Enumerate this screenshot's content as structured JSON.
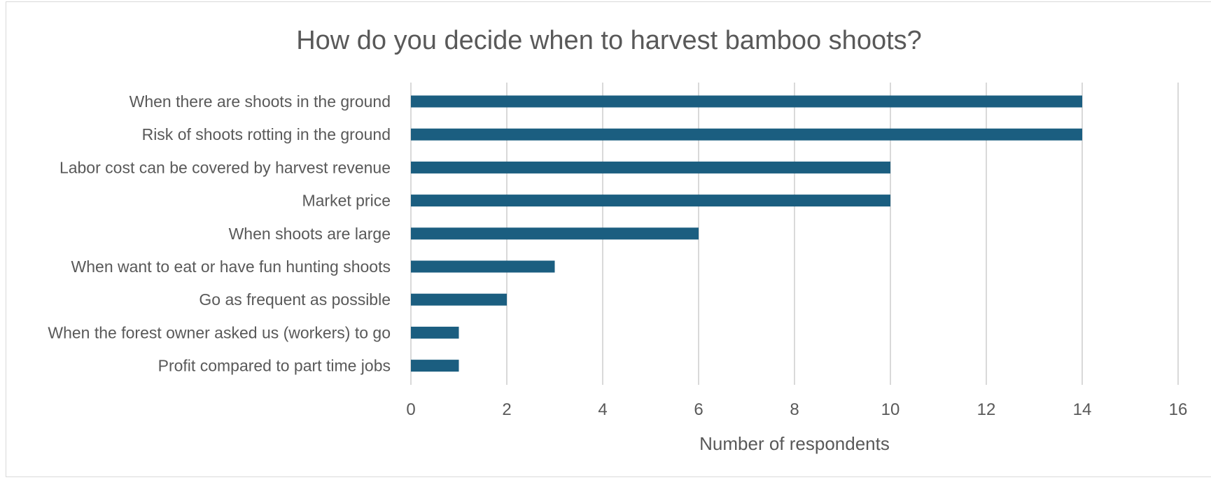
{
  "chart_data": {
    "type": "bar",
    "orientation": "horizontal",
    "title": "How do you decide when to harvest bamboo shoots?",
    "xlabel": "Number of respondents",
    "ylabel": "",
    "xlim": [
      0,
      16
    ],
    "xticks": [
      0,
      2,
      4,
      6,
      8,
      10,
      12,
      14,
      16
    ],
    "grid": true,
    "legend": "none",
    "bar_color": "#1B5E80",
    "categories": [
      "When there are shoots in the ground",
      "Risk of shoots rotting in the ground",
      "Labor cost can be covered by harvest revenue",
      "Market price",
      "When shoots are large",
      "When want to eat or have fun hunting shoots",
      "Go as frequent as possible",
      "When the forest owner asked us (workers) to go",
      "Profit compared to part time jobs"
    ],
    "values": [
      14,
      14,
      10,
      10,
      6,
      3,
      2,
      1,
      1
    ]
  }
}
